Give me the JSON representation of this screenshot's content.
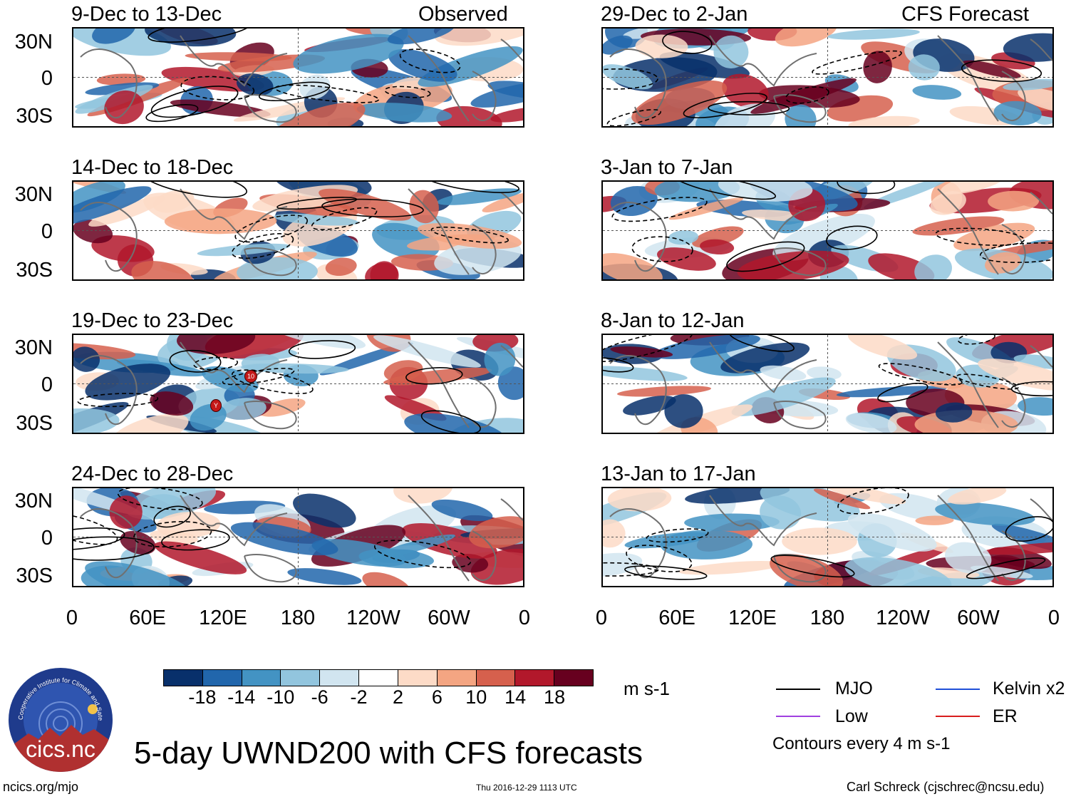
{
  "colors": {
    "blue_dark": "#08306b",
    "blue_mid": "#2166ac",
    "blue": "#4393c3",
    "blue_light": "#92c5de",
    "blue_pale": "#d1e5f0",
    "red_pale": "#fddbc7",
    "red_light": "#f4a582",
    "red": "#d6604d",
    "red_mid": "#b2182b",
    "red_dark": "#67001f",
    "land": "#707070",
    "mjo": "#000000",
    "kelvin": "#1f4fd8",
    "low": "#a040e0",
    "er": "#d81e1e"
  },
  "panels": {
    "observed_header": "Observed",
    "forecast_header": "CFS Forecast",
    "observed": [
      "9-Dec to 13-Dec",
      "14-Dec to 18-Dec",
      "19-Dec to 23-Dec",
      "24-Dec to 28-Dec"
    ],
    "forecast": [
      "29-Dec to 2-Jan",
      "3-Jan to 7-Jan",
      "8-Jan to 12-Jan",
      "13-Jan to 17-Jan"
    ]
  },
  "axes": {
    "lat_ticks": [
      "30N",
      "0",
      "30S"
    ],
    "lon_ticks": [
      "0",
      "60E",
      "120E",
      "180",
      "120W",
      "60W",
      "0"
    ]
  },
  "markers": {
    "tc_a": "10",
    "tc_b": "Y"
  },
  "colorbar": {
    "ticks": [
      "-18",
      "-14",
      "-10",
      "-6",
      "-2",
      "2",
      "6",
      "10",
      "14",
      "18"
    ],
    "units": "m s-1"
  },
  "legend": {
    "mjo": "MJO",
    "kelvin": "Kelvin x2",
    "low": "Low",
    "er": "ER",
    "contours_note": "Contours every 4 m s-1"
  },
  "title": "5-day UWND200 with CFS forecasts",
  "footer": {
    "url": "ncics.org/mjo",
    "timestamp": "Thu 2016-12-29 1113 UTC",
    "author": "Carl Schreck (cjschrec@ncsu.edu)"
  },
  "logo": {
    "name": "cics.nc",
    "ring_text": "Cooperative Institute for Climate and Satellites"
  }
}
